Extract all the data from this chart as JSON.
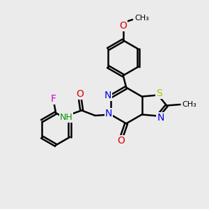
{
  "background_color": "#ebebeb",
  "bond_color": "#000000",
  "bond_width": 1.8,
  "atom_colors": {
    "N": "#0000dd",
    "O": "#dd0000",
    "S": "#bbbb00",
    "F": "#cc00cc",
    "NH": "#009900"
  },
  "fig_size": [
    3.0,
    3.0
  ],
  "dpi": 100
}
